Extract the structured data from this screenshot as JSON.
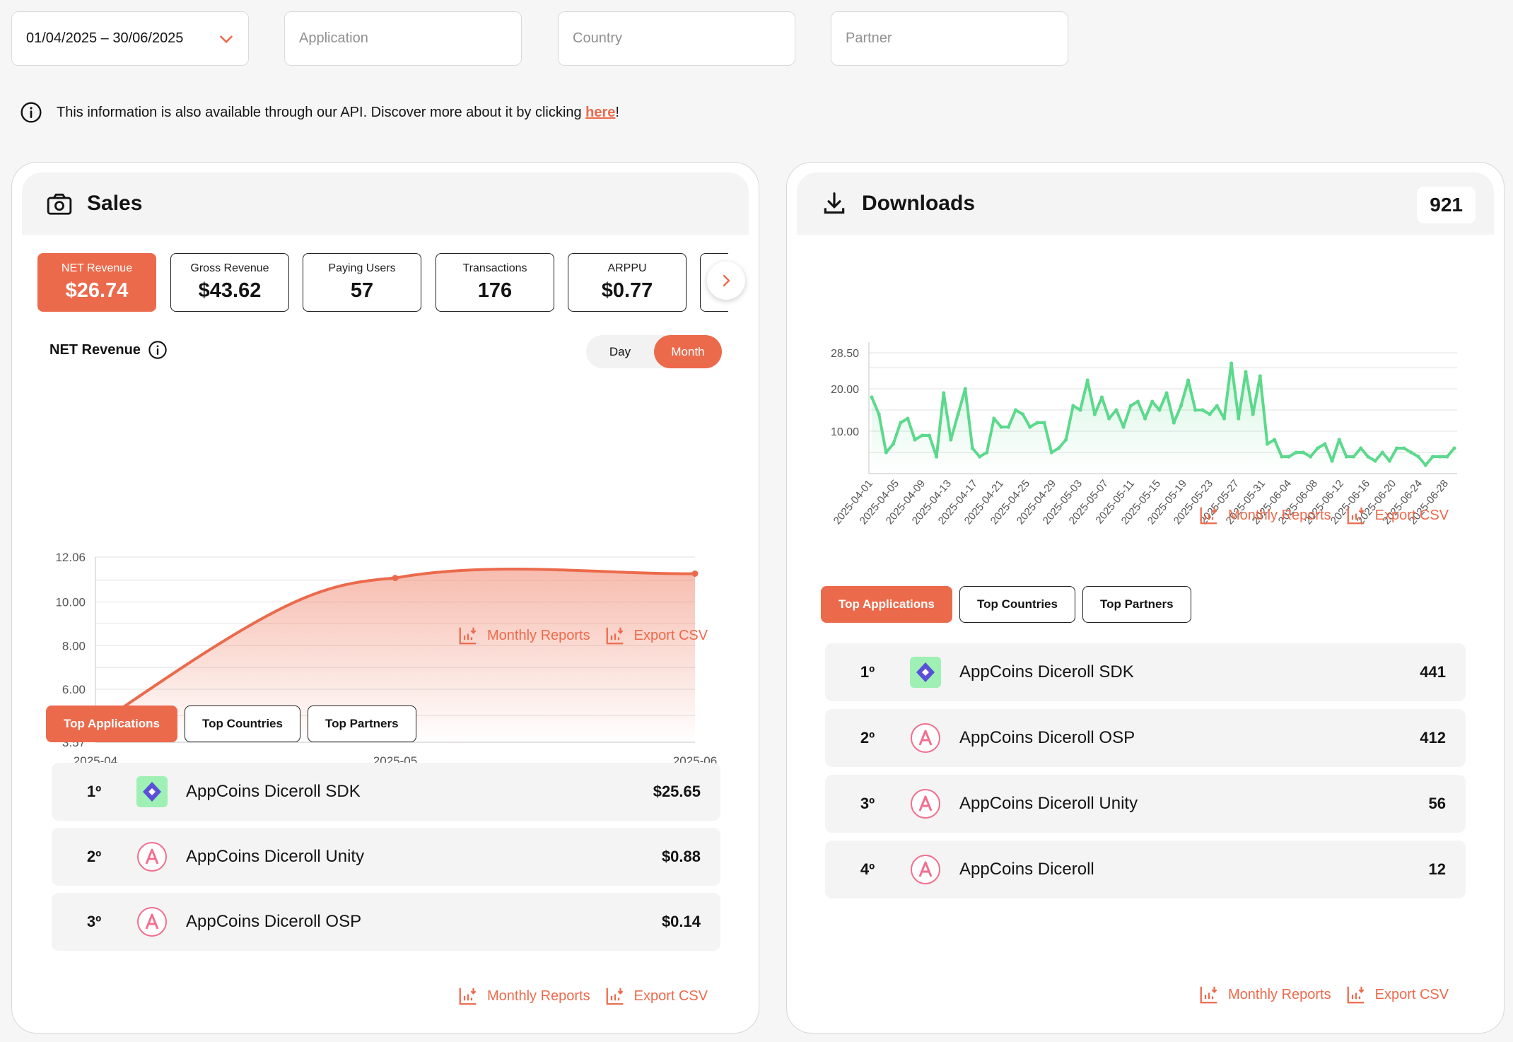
{
  "filters": {
    "date_range": "01/04/2025 – 30/06/2025",
    "application_placeholder": "Application",
    "country_placeholder": "Country",
    "partner_placeholder": "Partner"
  },
  "info": {
    "text": "This information is also available through our API. Discover more about it by clicking ",
    "link": "here",
    "suffix": "!"
  },
  "sales": {
    "title": "Sales",
    "kpis": [
      {
        "label": "NET Revenue",
        "value": "$26.74"
      },
      {
        "label": "Gross Revenue",
        "value": "$43.62"
      },
      {
        "label": "Paying Users",
        "value": "57"
      },
      {
        "label": "Transactions",
        "value": "176"
      },
      {
        "label": "ARPPU",
        "value": "$0.77"
      }
    ],
    "chart_label": "NET Revenue",
    "toggle": {
      "day": "Day",
      "month": "Month",
      "selected": "Month"
    },
    "actions": {
      "monthly_reports": "Monthly Reports",
      "export_csv": "Export CSV"
    },
    "tabs": [
      "Top Applications",
      "Top Countries",
      "Top Partners"
    ],
    "ranking": [
      {
        "rank": "1º",
        "name": "AppCoins Diceroll SDK",
        "value": "$25.65",
        "icon": "sdk-diamond-icon"
      },
      {
        "rank": "2º",
        "name": "AppCoins Diceroll Unity",
        "value": "$0.88",
        "icon": "appcoins-icon"
      },
      {
        "rank": "3º",
        "name": "AppCoins Diceroll OSP",
        "value": "$0.14",
        "icon": "appcoins-icon"
      }
    ]
  },
  "downloads": {
    "title": "Downloads",
    "total": "921",
    "actions": {
      "monthly_reports": "Monthly Reports",
      "export_csv": "Export CSV"
    },
    "tabs": [
      "Top Applications",
      "Top Countries",
      "Top Partners"
    ],
    "ranking": [
      {
        "rank": "1º",
        "name": "AppCoins Diceroll SDK",
        "value": "441",
        "icon": "sdk-diamond-icon"
      },
      {
        "rank": "2º",
        "name": "AppCoins Diceroll OSP",
        "value": "412",
        "icon": "appcoins-icon"
      },
      {
        "rank": "3º",
        "name": "AppCoins Diceroll Unity",
        "value": "56",
        "icon": "appcoins-icon"
      },
      {
        "rank": "4º",
        "name": "AppCoins Diceroll",
        "value": "12",
        "icon": "appcoins-icon"
      }
    ]
  },
  "colors": {
    "accent": "#ec6a4c",
    "green": "#5cd98c"
  },
  "chart_data": [
    {
      "type": "area",
      "title": "NET Revenue",
      "categories": [
        "2025-04",
        "2025-05",
        "2025-06"
      ],
      "values": [
        4.3,
        11.1,
        11.3
      ],
      "yticks": [
        "3.57",
        "6.00",
        "8.00",
        "10.00",
        "12.06"
      ],
      "ylim": [
        3.57,
        12.06
      ],
      "grid": true
    },
    {
      "type": "line",
      "title": "Downloads",
      "x_start": "2025-04-01",
      "x_end": "2025-06-30",
      "xticks": [
        "2025-04-01",
        "2025-04-05",
        "2025-04-09",
        "2025-04-13",
        "2025-04-17",
        "2025-04-21",
        "2025-04-25",
        "2025-04-29",
        "2025-05-03",
        "2025-05-07",
        "2025-05-11",
        "2025-05-15",
        "2025-05-19",
        "2025-05-23",
        "2025-05-27",
        "2025-05-31",
        "2025-06-04",
        "2025-06-08",
        "2025-06-12",
        "2025-06-16",
        "2025-06-20",
        "2025-06-24",
        "2025-06-28"
      ],
      "yticks": [
        "10.00",
        "20.00",
        "28.50"
      ],
      "ylim": [
        0,
        30
      ],
      "values": [
        18,
        14,
        5,
        7,
        12,
        13,
        8,
        9,
        9,
        4,
        19,
        8,
        14,
        20,
        6,
        4,
        5,
        13,
        11,
        11,
        15,
        14,
        11,
        12,
        12,
        5,
        6,
        8,
        16,
        15,
        22,
        14,
        18,
        13,
        15,
        11,
        16,
        17,
        13,
        17,
        15,
        19,
        12,
        16,
        22,
        15,
        15,
        14,
        16,
        13,
        26,
        13,
        24,
        14,
        23,
        7,
        8,
        4,
        4,
        5,
        5,
        4,
        6,
        7,
        3,
        8,
        4,
        4,
        6,
        4,
        3,
        5,
        3,
        6,
        6,
        5,
        4,
        2,
        4,
        4,
        4,
        6
      ]
    }
  ]
}
